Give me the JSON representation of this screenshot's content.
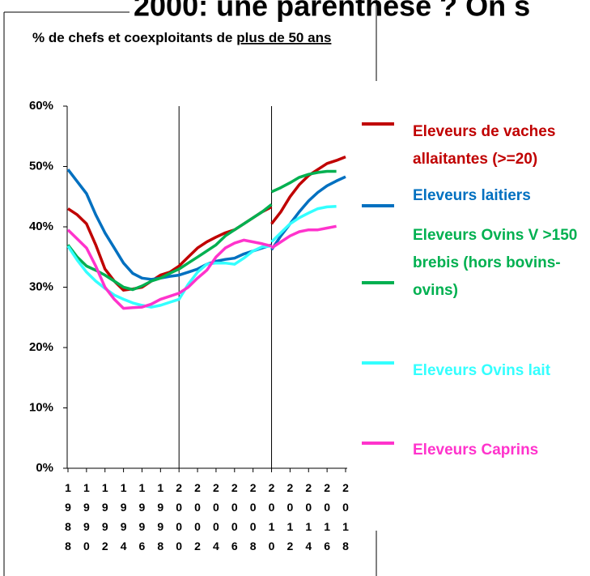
{
  "annotation": "2000: une parenthèse ? On s",
  "chart_data": {
    "type": "line",
    "title": "% de chefs et coexploitants de ",
    "title_underlined": "plus de 50 ans",
    "xlim": [
      1988,
      2018
    ],
    "xticks": [
      1988,
      1990,
      1992,
      1994,
      1996,
      1998,
      2000,
      2002,
      2004,
      2006,
      2008,
      2010,
      2012,
      2014,
      2016,
      2018
    ],
    "ylim": [
      0,
      60
    ],
    "yticks": [
      {
        "value": 0,
        "label": "0%"
      },
      {
        "value": 10,
        "label": "10%"
      },
      {
        "value": 20,
        "label": "20%"
      },
      {
        "value": 30,
        "label": "30%"
      },
      {
        "value": 40,
        "label": "40%"
      },
      {
        "value": 50,
        "label": "50%"
      },
      {
        "value": 60,
        "label": "60%"
      }
    ],
    "vlines": [
      2000,
      2010
    ],
    "series": [
      {
        "name": "Eleveurs de vaches allaitantes (>=20)",
        "color": "#c00000",
        "x": [
          1988,
          1989,
          1990,
          1991,
          1992,
          1993,
          1994,
          1995,
          1996,
          1997,
          1998,
          1999,
          2000,
          2001,
          2002,
          2003,
          2004,
          2005,
          2006,
          2007,
          2008,
          2009,
          2010
        ],
        "values": [
          43,
          42,
          40.5,
          37,
          33,
          31,
          29.5,
          29.7,
          30,
          31,
          32,
          32.5,
          33.5,
          35,
          36.5,
          37.5,
          38.3,
          39,
          39.5,
          40.5,
          41.5,
          42.5,
          43.3
        ]
      },
      {
        "color": "#c00000",
        "x": [
          2010,
          2011,
          2012,
          2013,
          2014,
          2015,
          2016,
          2017,
          2018
        ],
        "values": [
          40.5,
          42.5,
          45,
          47,
          48.5,
          49.5,
          50.5,
          51,
          51.6
        ]
      },
      {
        "name": "Eleveurs laitiers",
        "color": "#0070c0",
        "x": [
          1988,
          1989,
          1990,
          1991,
          1992,
          1993,
          1994,
          1995,
          1996,
          1997,
          1998,
          1999,
          2000,
          2001,
          2002,
          2003,
          2004,
          2005,
          2006,
          2007,
          2008,
          2009,
          2010
        ],
        "values": [
          49.5,
          47.5,
          45.5,
          42,
          39,
          36.5,
          34,
          32.3,
          31.5,
          31.3,
          31.5,
          31.8,
          32,
          32.5,
          33,
          33.8,
          34.3,
          34.6,
          34.8,
          35.5,
          36,
          36.5,
          37
        ]
      },
      {
        "color": "#0070c0",
        "x": [
          2010,
          2011,
          2012,
          2013,
          2014,
          2015,
          2016,
          2017,
          2018
        ],
        "values": [
          36.2,
          38.5,
          40.5,
          42.5,
          44.3,
          45.7,
          46.8,
          47.6,
          48.3
        ]
      },
      {
        "name": "Eleveurs Ovins V >150 brebis (hors bovins-ovins)",
        "color": "#00b050",
        "x": [
          1988,
          1989,
          1990,
          1991,
          1992,
          1993,
          1994,
          1995,
          1996,
          1997,
          1998,
          1999,
          2000,
          2001,
          2002,
          2003,
          2004,
          2005,
          2006,
          2007,
          2008,
          2009,
          2010
        ],
        "values": [
          37,
          35,
          33.5,
          32.8,
          32,
          31,
          30,
          29.6,
          30.2,
          31,
          31.5,
          32.3,
          33,
          34,
          35,
          36,
          37,
          38.5,
          39.5,
          40.5,
          41.5,
          42.5,
          43.7
        ]
      },
      {
        "color": "#00b050",
        "x": [
          2010,
          2011,
          2012,
          2013,
          2014,
          2015,
          2016,
          2017
        ],
        "values": [
          45.8,
          46.5,
          47.3,
          48.2,
          48.7,
          49,
          49.2,
          49.2
        ]
      },
      {
        "name": "Eleveurs Ovins lait",
        "color": "#33ffff",
        "x": [
          1988,
          1989,
          1990,
          1991,
          1992,
          1993,
          1994,
          1995,
          1996,
          1997,
          1998,
          1999,
          2000,
          2001,
          2002,
          2003,
          2004,
          2005,
          2006,
          2007,
          2008,
          2009,
          2010
        ],
        "values": [
          36.8,
          34.5,
          32.5,
          31,
          29.8,
          28.7,
          28,
          27.4,
          27,
          26.7,
          27,
          27.5,
          28,
          30.5,
          32.5,
          33.8,
          34,
          34,
          33.8,
          34.8,
          36,
          36.7,
          36.8
        ]
      },
      {
        "color": "#33ffff",
        "x": [
          2010,
          2011,
          2012,
          2013,
          2014,
          2015,
          2016,
          2017
        ],
        "values": [
          37.5,
          39,
          40.5,
          41.5,
          42.3,
          43,
          43.3,
          43.4
        ]
      },
      {
        "name": "Eleveurs Caprins",
        "color": "#ff33cc",
        "x": [
          1988,
          1989,
          1990,
          1991,
          1992,
          1993,
          1994,
          1995,
          1996,
          1997,
          1998,
          1999,
          2000,
          2001,
          2002,
          2003,
          2004,
          2005,
          2006,
          2007,
          2008,
          2009,
          2010
        ],
        "values": [
          39.5,
          38,
          36.5,
          33.5,
          30,
          28,
          26.5,
          26.6,
          26.7,
          27.2,
          28,
          28.5,
          29,
          30,
          31.5,
          32.8,
          35,
          36.5,
          37.3,
          37.8,
          37.5,
          37.2,
          36.8
        ]
      },
      {
        "color": "#ff33cc",
        "x": [
          2010,
          2011,
          2012,
          2013,
          2014,
          2015,
          2016,
          2017
        ],
        "values": [
          36.5,
          37.5,
          38.5,
          39.2,
          39.5,
          39.5,
          39.8,
          40.1
        ]
      }
    ]
  }
}
